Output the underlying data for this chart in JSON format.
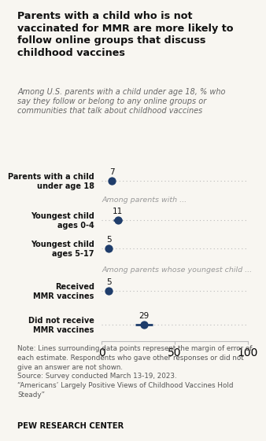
{
  "title": "Parents with a child who is not\nvaccinated for MMR are more likely to\nfollow online groups that discuss\nchildhood vaccines",
  "subtitle": "Among U.S. parents with a child under age 18, % who\nsay they follow or belong to any online groups or\ncommunities that talk about childhood vaccines",
  "categories": [
    "Parents with a child\nunder age 18",
    "Youngest child\nages 0-4",
    "Youngest child\nages 5-17",
    "Received\nMMR vaccines",
    "Did not receive\nMMR vaccines"
  ],
  "values": [
    7,
    11,
    5,
    5,
    29
  ],
  "margins_of_error": [
    2,
    3,
    2,
    2,
    6
  ],
  "section_labels": [
    {
      "text": "Among parents with ...",
      "y": 3.75
    },
    {
      "text": "Among parents whose youngest child ...",
      "y": 1.65
    }
  ],
  "dot_color": "#1f3d6b",
  "line_color": "#1f3d6b",
  "dot_size": 55,
  "xticks": [
    0,
    50,
    100
  ],
  "note_lines": [
    "Note: Lines surrounding data points represent the margin of error of",
    "each estimate. Respondents who gave other responses or did not",
    "give an answer are not shown.",
    "Source: Survey conducted March 13-19, 2023.",
    "“Americans’ Largely Positive Views of Childhood Vaccines Hold",
    "Steady”"
  ],
  "footer": "PEW RESEARCH CENTER",
  "bg_color": "#f8f6f1",
  "title_color": "#111111",
  "subtitle_color": "#666666",
  "section_label_color": "#999999",
  "note_color": "#555555",
  "axis_color": "#bbbbbb"
}
